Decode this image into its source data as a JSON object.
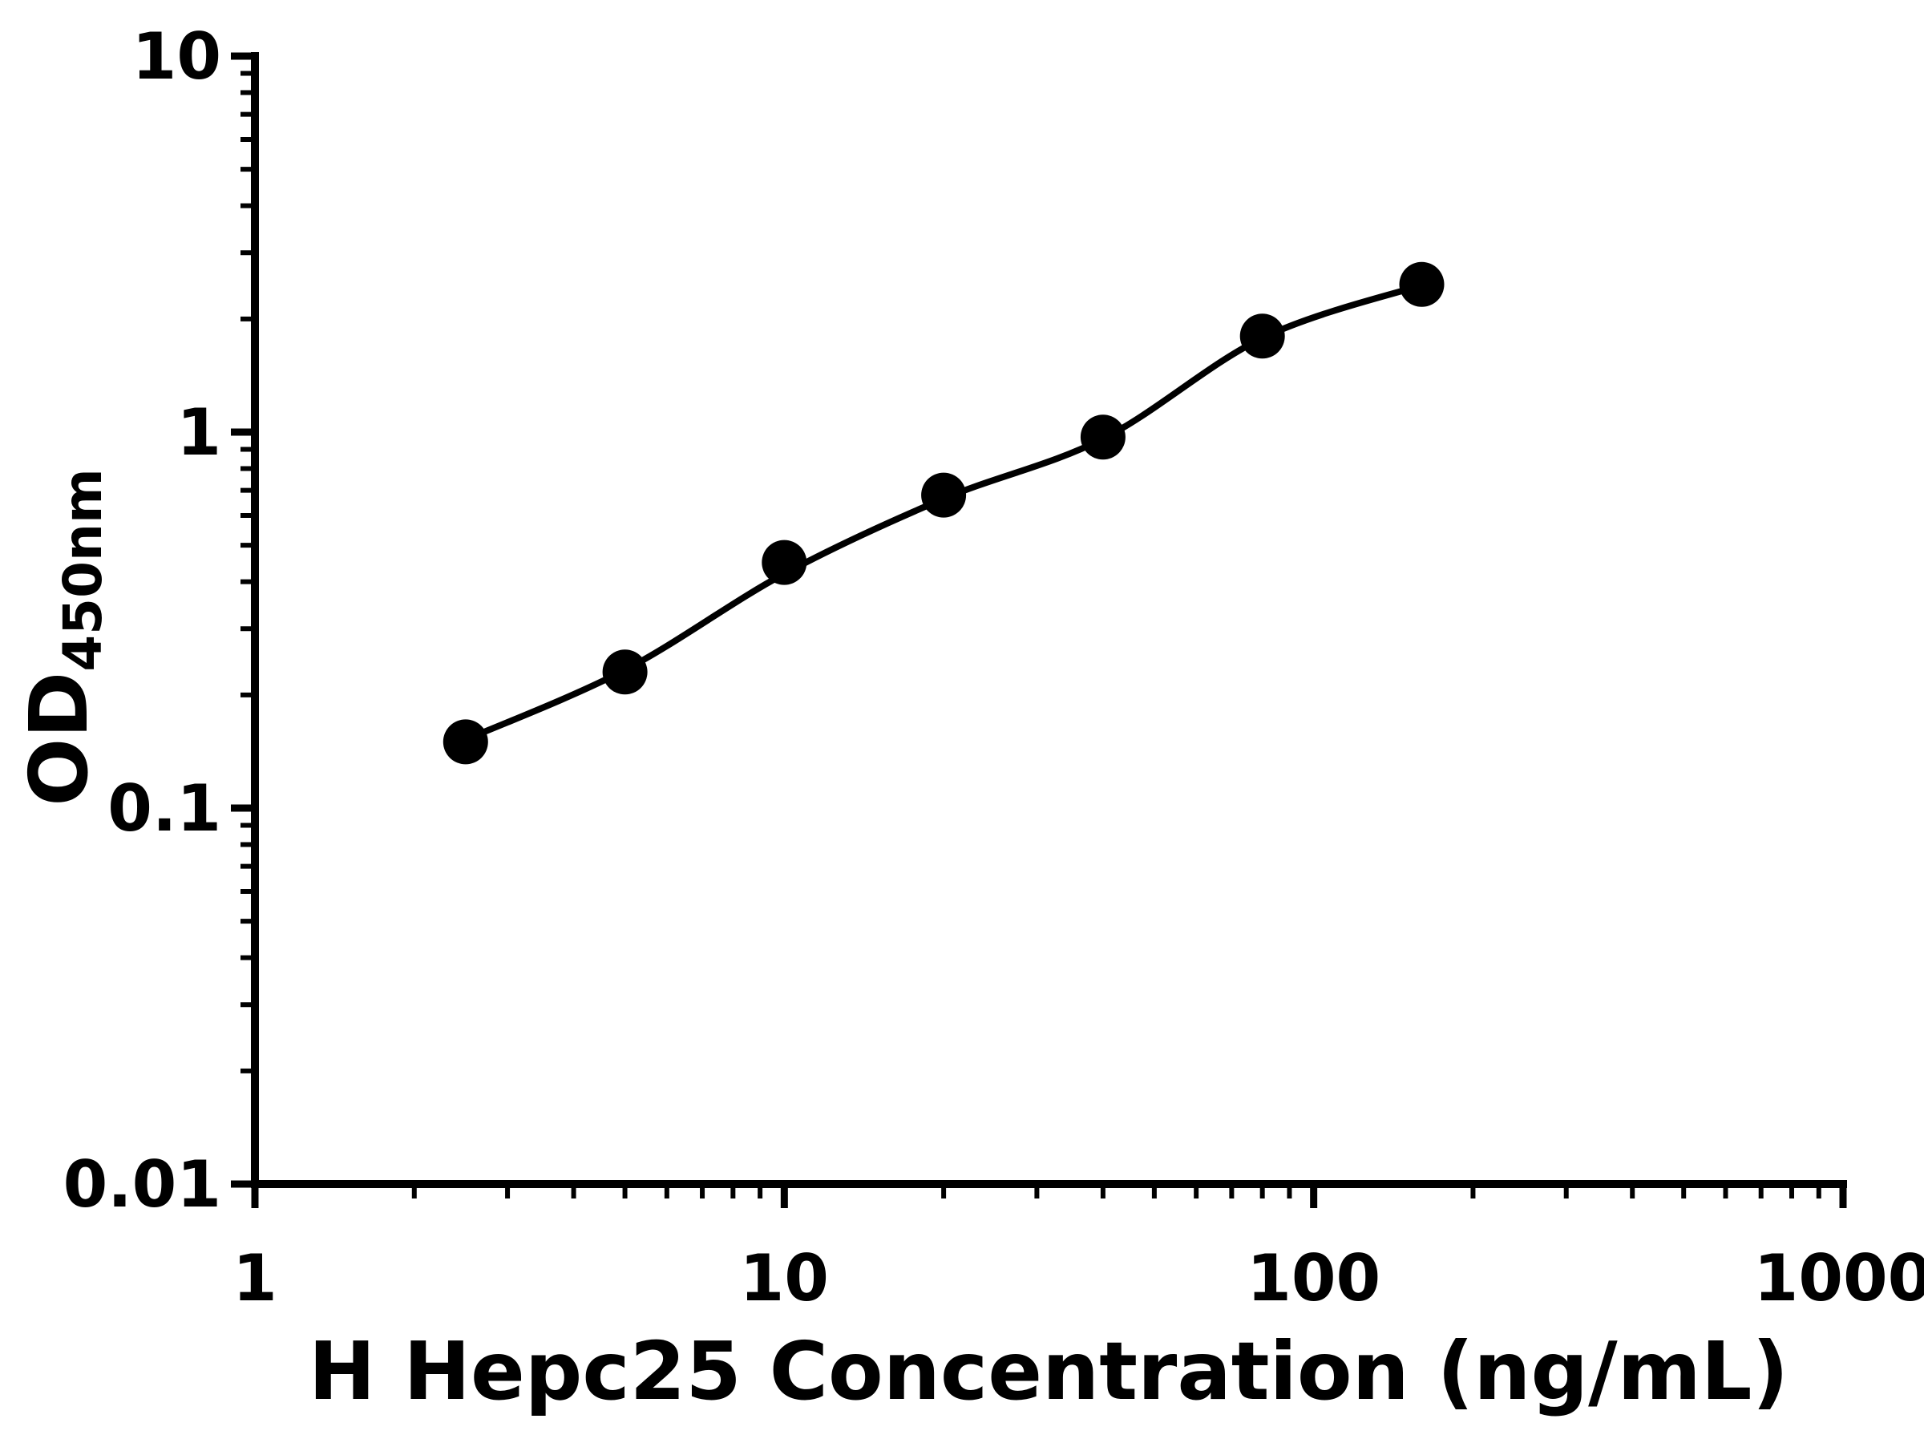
{
  "figure": {
    "background_color": "#ffffff"
  },
  "chart_data": {
    "type": "scatter",
    "title": "",
    "xlabel": "H Hepc25 Concentration (ng/mL)",
    "ylabel_base": "OD",
    "ylabel_subscript": "450nm",
    "x_scale": "log10",
    "y_scale": "log10",
    "xlim": [
      1,
      1000
    ],
    "ylim": [
      0.01,
      10
    ],
    "x_ticks": [
      1,
      10,
      100,
      1000
    ],
    "x_tick_labels": [
      "1",
      "10",
      "100",
      "1000"
    ],
    "y_ticks": [
      10,
      1,
      0.1,
      0.01
    ],
    "y_tick_labels": [
      "10",
      "1",
      "0.1",
      "0.01"
    ],
    "grid": false,
    "legend": null,
    "axis_color": "#000000",
    "marker_color": "#000000",
    "line_color": "#000000",
    "points": {
      "x": [
        2.5,
        5,
        10,
        20,
        40,
        80,
        160
      ],
      "y": [
        0.15,
        0.23,
        0.45,
        0.68,
        0.97,
        1.8,
        2.47
      ]
    },
    "fit_curve": {
      "x": [
        2.5,
        5,
        10,
        20,
        40,
        80,
        160
      ],
      "y": [
        0.152,
        0.233,
        0.42,
        0.665,
        0.96,
        1.78,
        2.46
      ]
    }
  }
}
